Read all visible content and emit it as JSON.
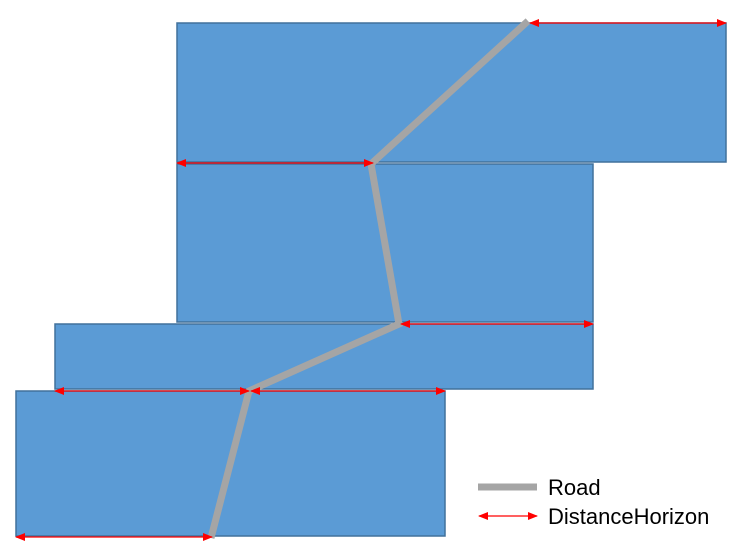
{
  "legend": {
    "road_label": "Road",
    "distance_label": "DistanceHorizon"
  },
  "colors": {
    "block_fill": "#5b9bd5",
    "block_stroke": "#41719c",
    "road": "#a5a5a5",
    "distance_arrow": "#ff0000"
  }
}
